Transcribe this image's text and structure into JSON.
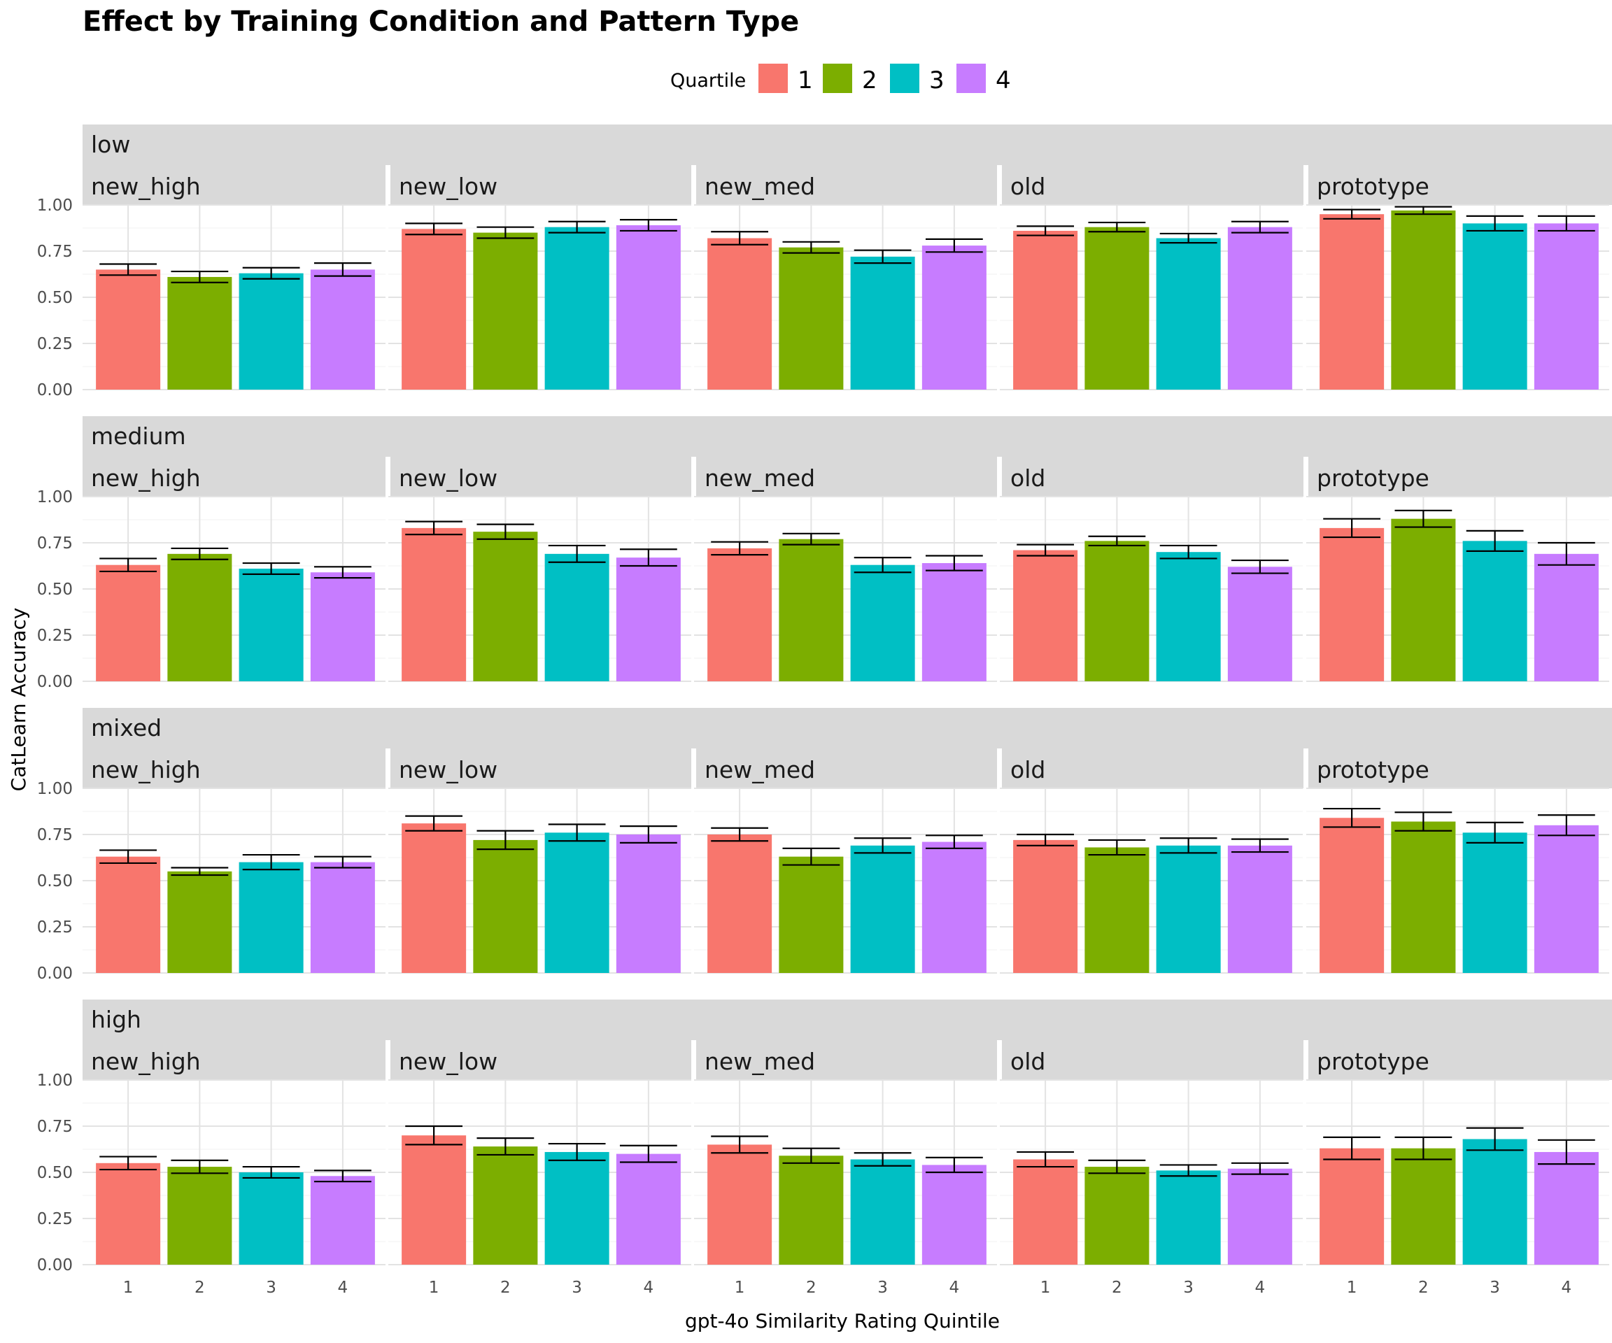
{
  "chart_data": {
    "type": "bar",
    "title": "Effect by Training Condition and Pattern Type",
    "xlabel": "gpt-4o Similarity Rating Quintile",
    "ylabel": "CatLearn Accuracy",
    "legend_title": "Quartile",
    "legend_position": "top",
    "categories": [
      "1",
      "2",
      "3",
      "4"
    ],
    "legend_labels": [
      "1",
      "2",
      "3",
      "4"
    ],
    "colors": [
      "#F8766D",
      "#7CAE00",
      "#00BFC4",
      "#C77CFF"
    ],
    "ylim": [
      0,
      1
    ],
    "yticks": [
      "0.00",
      "0.25",
      "0.50",
      "0.75",
      "1.00"
    ],
    "grid": true,
    "facet_rows": [
      "low",
      "medium",
      "mixed",
      "high"
    ],
    "facet_cols": [
      "new_high",
      "new_low",
      "new_med",
      "old",
      "prototype"
    ],
    "values": [
      [
        [
          0.65,
          0.61,
          0.63,
          0.65
        ],
        [
          0.87,
          0.85,
          0.88,
          0.89
        ],
        [
          0.82,
          0.77,
          0.72,
          0.78
        ],
        [
          0.86,
          0.88,
          0.82,
          0.88
        ],
        [
          0.95,
          0.97,
          0.9,
          0.9
        ]
      ],
      [
        [
          0.63,
          0.69,
          0.61,
          0.59
        ],
        [
          0.83,
          0.81,
          0.69,
          0.67
        ],
        [
          0.72,
          0.77,
          0.63,
          0.64
        ],
        [
          0.71,
          0.76,
          0.7,
          0.62
        ],
        [
          0.83,
          0.88,
          0.76,
          0.69
        ]
      ],
      [
        [
          0.63,
          0.55,
          0.6,
          0.6
        ],
        [
          0.81,
          0.72,
          0.76,
          0.75
        ],
        [
          0.75,
          0.63,
          0.69,
          0.71
        ],
        [
          0.72,
          0.68,
          0.69,
          0.69
        ],
        [
          0.84,
          0.82,
          0.76,
          0.8
        ]
      ],
      [
        [
          0.55,
          0.53,
          0.5,
          0.48
        ],
        [
          0.7,
          0.64,
          0.61,
          0.6
        ],
        [
          0.65,
          0.59,
          0.57,
          0.54
        ],
        [
          0.57,
          0.53,
          0.51,
          0.52
        ],
        [
          0.63,
          0.63,
          0.68,
          0.61
        ]
      ]
    ],
    "errors": [
      [
        [
          0.03,
          0.03,
          0.03,
          0.035
        ],
        [
          0.03,
          0.03,
          0.03,
          0.03
        ],
        [
          0.035,
          0.03,
          0.035,
          0.035
        ],
        [
          0.025,
          0.025,
          0.025,
          0.03
        ],
        [
          0.025,
          0.02,
          0.04,
          0.04
        ]
      ],
      [
        [
          0.035,
          0.03,
          0.03,
          0.03
        ],
        [
          0.035,
          0.04,
          0.045,
          0.045
        ],
        [
          0.035,
          0.03,
          0.04,
          0.04
        ],
        [
          0.03,
          0.025,
          0.035,
          0.035
        ],
        [
          0.05,
          0.045,
          0.055,
          0.06
        ]
      ],
      [
        [
          0.035,
          0.02,
          0.04,
          0.03
        ],
        [
          0.04,
          0.05,
          0.045,
          0.045
        ],
        [
          0.035,
          0.045,
          0.04,
          0.035
        ],
        [
          0.03,
          0.04,
          0.04,
          0.035
        ],
        [
          0.05,
          0.05,
          0.055,
          0.055
        ]
      ],
      [
        [
          0.035,
          0.035,
          0.03,
          0.03
        ],
        [
          0.05,
          0.045,
          0.045,
          0.045
        ],
        [
          0.045,
          0.04,
          0.035,
          0.04
        ],
        [
          0.04,
          0.035,
          0.03,
          0.03
        ],
        [
          0.06,
          0.06,
          0.06,
          0.065
        ]
      ]
    ]
  }
}
